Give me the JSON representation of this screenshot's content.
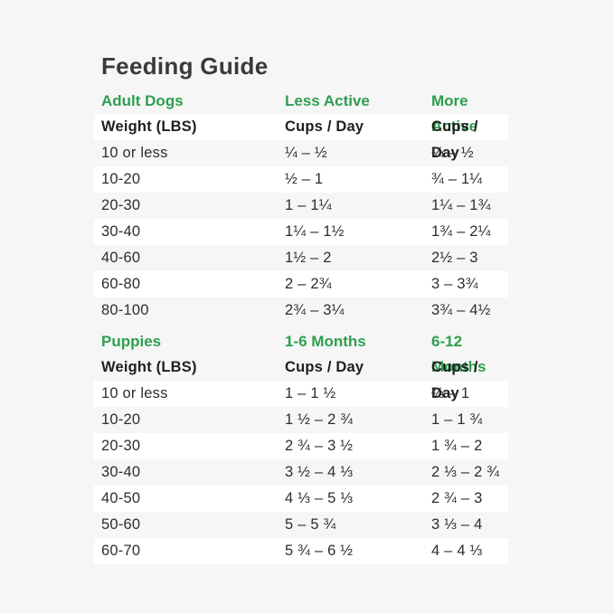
{
  "title": "Feeding Guide",
  "colors": {
    "accent_green": "#2f9e4f",
    "text": "#2d2d2d",
    "background": "#f5f6f5",
    "row_stripe": "#ffffff"
  },
  "tables": [
    {
      "section_label": "Adult Dogs",
      "col2_label": "Less Active",
      "col3_label": "More Active",
      "subheader": [
        "Weight (LBS)",
        "Cups / Day",
        "Cups / Day"
      ],
      "rows": [
        [
          "10 or less",
          "¼ – ½",
          "¼ – ½"
        ],
        [
          "10-20",
          "½ – 1",
          "¾ – 1¼"
        ],
        [
          "20-30",
          "1 – 1¼",
          "1¼ – 1¾"
        ],
        [
          "30-40",
          "1¼ – 1½",
          "1¾ – 2¼"
        ],
        [
          "40-60",
          "1½ – 2",
          "2½ – 3"
        ],
        [
          "60-80",
          "2 – 2¾",
          "3 – 3¾"
        ],
        [
          "80-100",
          "2¾ – 3¼",
          "3¾ – 4½"
        ]
      ]
    },
    {
      "section_label": "Puppies",
      "col2_label": "1-6 Months",
      "col3_label": "6-12 Months",
      "subheader": [
        "Weight (LBS)",
        "Cups / Day",
        "Cups / Day"
      ],
      "rows": [
        [
          "10 or less",
          "1 – 1 ½",
          "⅔ – 1"
        ],
        [
          "10-20",
          "1 ½ – 2 ¾",
          "1 – 1 ¾"
        ],
        [
          "20-30",
          "2 ¾ – 3 ½",
          "1 ¾ – 2"
        ],
        [
          "30-40",
          "3 ½ – 4 ⅓",
          "2 ⅓ – 2 ¾"
        ],
        [
          "40-50",
          "4 ⅓ – 5 ⅓",
          "2 ¾ – 3"
        ],
        [
          "50-60",
          "5 – 5 ¾",
          "3 ⅓ – 4"
        ],
        [
          "60-70",
          "5 ¾ – 6 ½",
          "4 – 4 ⅓"
        ]
      ]
    }
  ]
}
